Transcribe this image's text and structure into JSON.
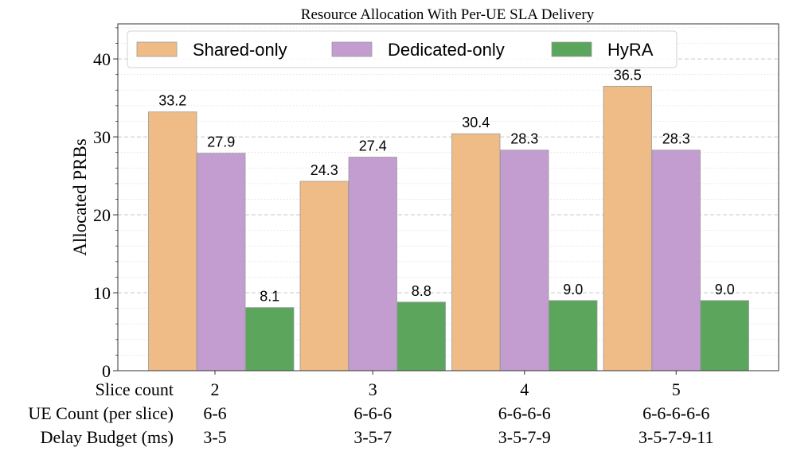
{
  "chart_data": {
    "type": "bar",
    "title": "Resource Allocation With Per-UE SLA Delivery",
    "ylabel": "Allocated PRBs",
    "xlabel": "",
    "ylim": [
      0,
      44.5
    ],
    "yticks": [
      0,
      10,
      20,
      30,
      40
    ],
    "grid": true,
    "legend_position": "top",
    "category_rows": [
      {
        "label": "Slice count",
        "values": [
          "2",
          "3",
          "4",
          "5"
        ]
      },
      {
        "label": "UE Count (per slice)",
        "values": [
          "6-6",
          "6-6-6",
          "6-6-6-6",
          "6-6-6-6-6"
        ]
      },
      {
        "label": "Delay Budget (ms)",
        "values": [
          "3-5",
          "3-5-7",
          "3-5-7-9",
          "3-5-7-9-11"
        ]
      }
    ],
    "series": [
      {
        "name": "Shared-only",
        "color": "#EFBC87",
        "values": [
          33.2,
          24.3,
          30.4,
          36.5
        ],
        "labels": [
          "33.2",
          "24.3",
          "30.4",
          "36.5"
        ]
      },
      {
        "name": "Dedicated-only",
        "color": "#C39DD0",
        "values": [
          27.9,
          27.4,
          28.3,
          28.3
        ],
        "labels": [
          "27.9",
          "27.4",
          "28.3",
          "28.3"
        ]
      },
      {
        "name": "HyRA",
        "color": "#5BA55C",
        "values": [
          8.1,
          8.8,
          9.0,
          9.0
        ],
        "labels": [
          "8.1",
          "8.8",
          "9.0",
          "9.0"
        ]
      }
    ]
  }
}
